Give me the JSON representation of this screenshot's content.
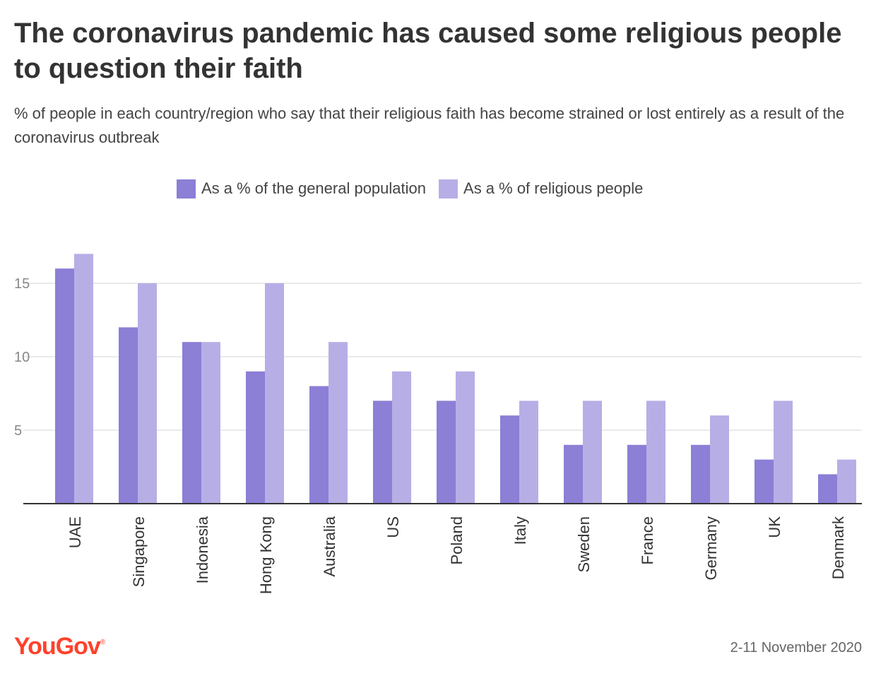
{
  "title": "The coronavirus pandemic has caused some religious people to question their faith",
  "subtitle": "% of people in each country/region who say that their religious faith has become strained or lost entirely as a result of the coronavirus outbreak",
  "legend": [
    {
      "label": "As a % of the general population",
      "color": "#8b7fd6"
    },
    {
      "label": "As a % of religious people",
      "color": "#b7aee6"
    }
  ],
  "footer": {
    "logo": "YouGov",
    "logo_mark": "®",
    "date": "2-11 November 2020"
  },
  "colors": {
    "general": "#8b7fd6",
    "religious": "#b7aee6",
    "grid": "#e3e3e3",
    "axis": "#333333",
    "brand": "#ff412c"
  },
  "chart_data": {
    "type": "bar",
    "categories": [
      "UAE",
      "Singapore",
      "Indonesia",
      "Hong Kong",
      "Australia",
      "US",
      "Poland",
      "Italy",
      "Sweden",
      "France",
      "Germany",
      "UK",
      "Denmark"
    ],
    "series": [
      {
        "name": "As a % of the general population",
        "values": [
          16,
          12,
          11,
          9,
          8,
          7,
          7,
          6,
          4,
          4,
          4,
          3,
          2
        ]
      },
      {
        "name": "As a % of religious people",
        "values": [
          17,
          15,
          11,
          15,
          11,
          9,
          9,
          7,
          7,
          7,
          6,
          7,
          3
        ]
      }
    ],
    "yticks": [
      5,
      10,
      15
    ],
    "ylim": [
      0,
      17
    ],
    "grid": true,
    "legend_position": "top-center"
  }
}
